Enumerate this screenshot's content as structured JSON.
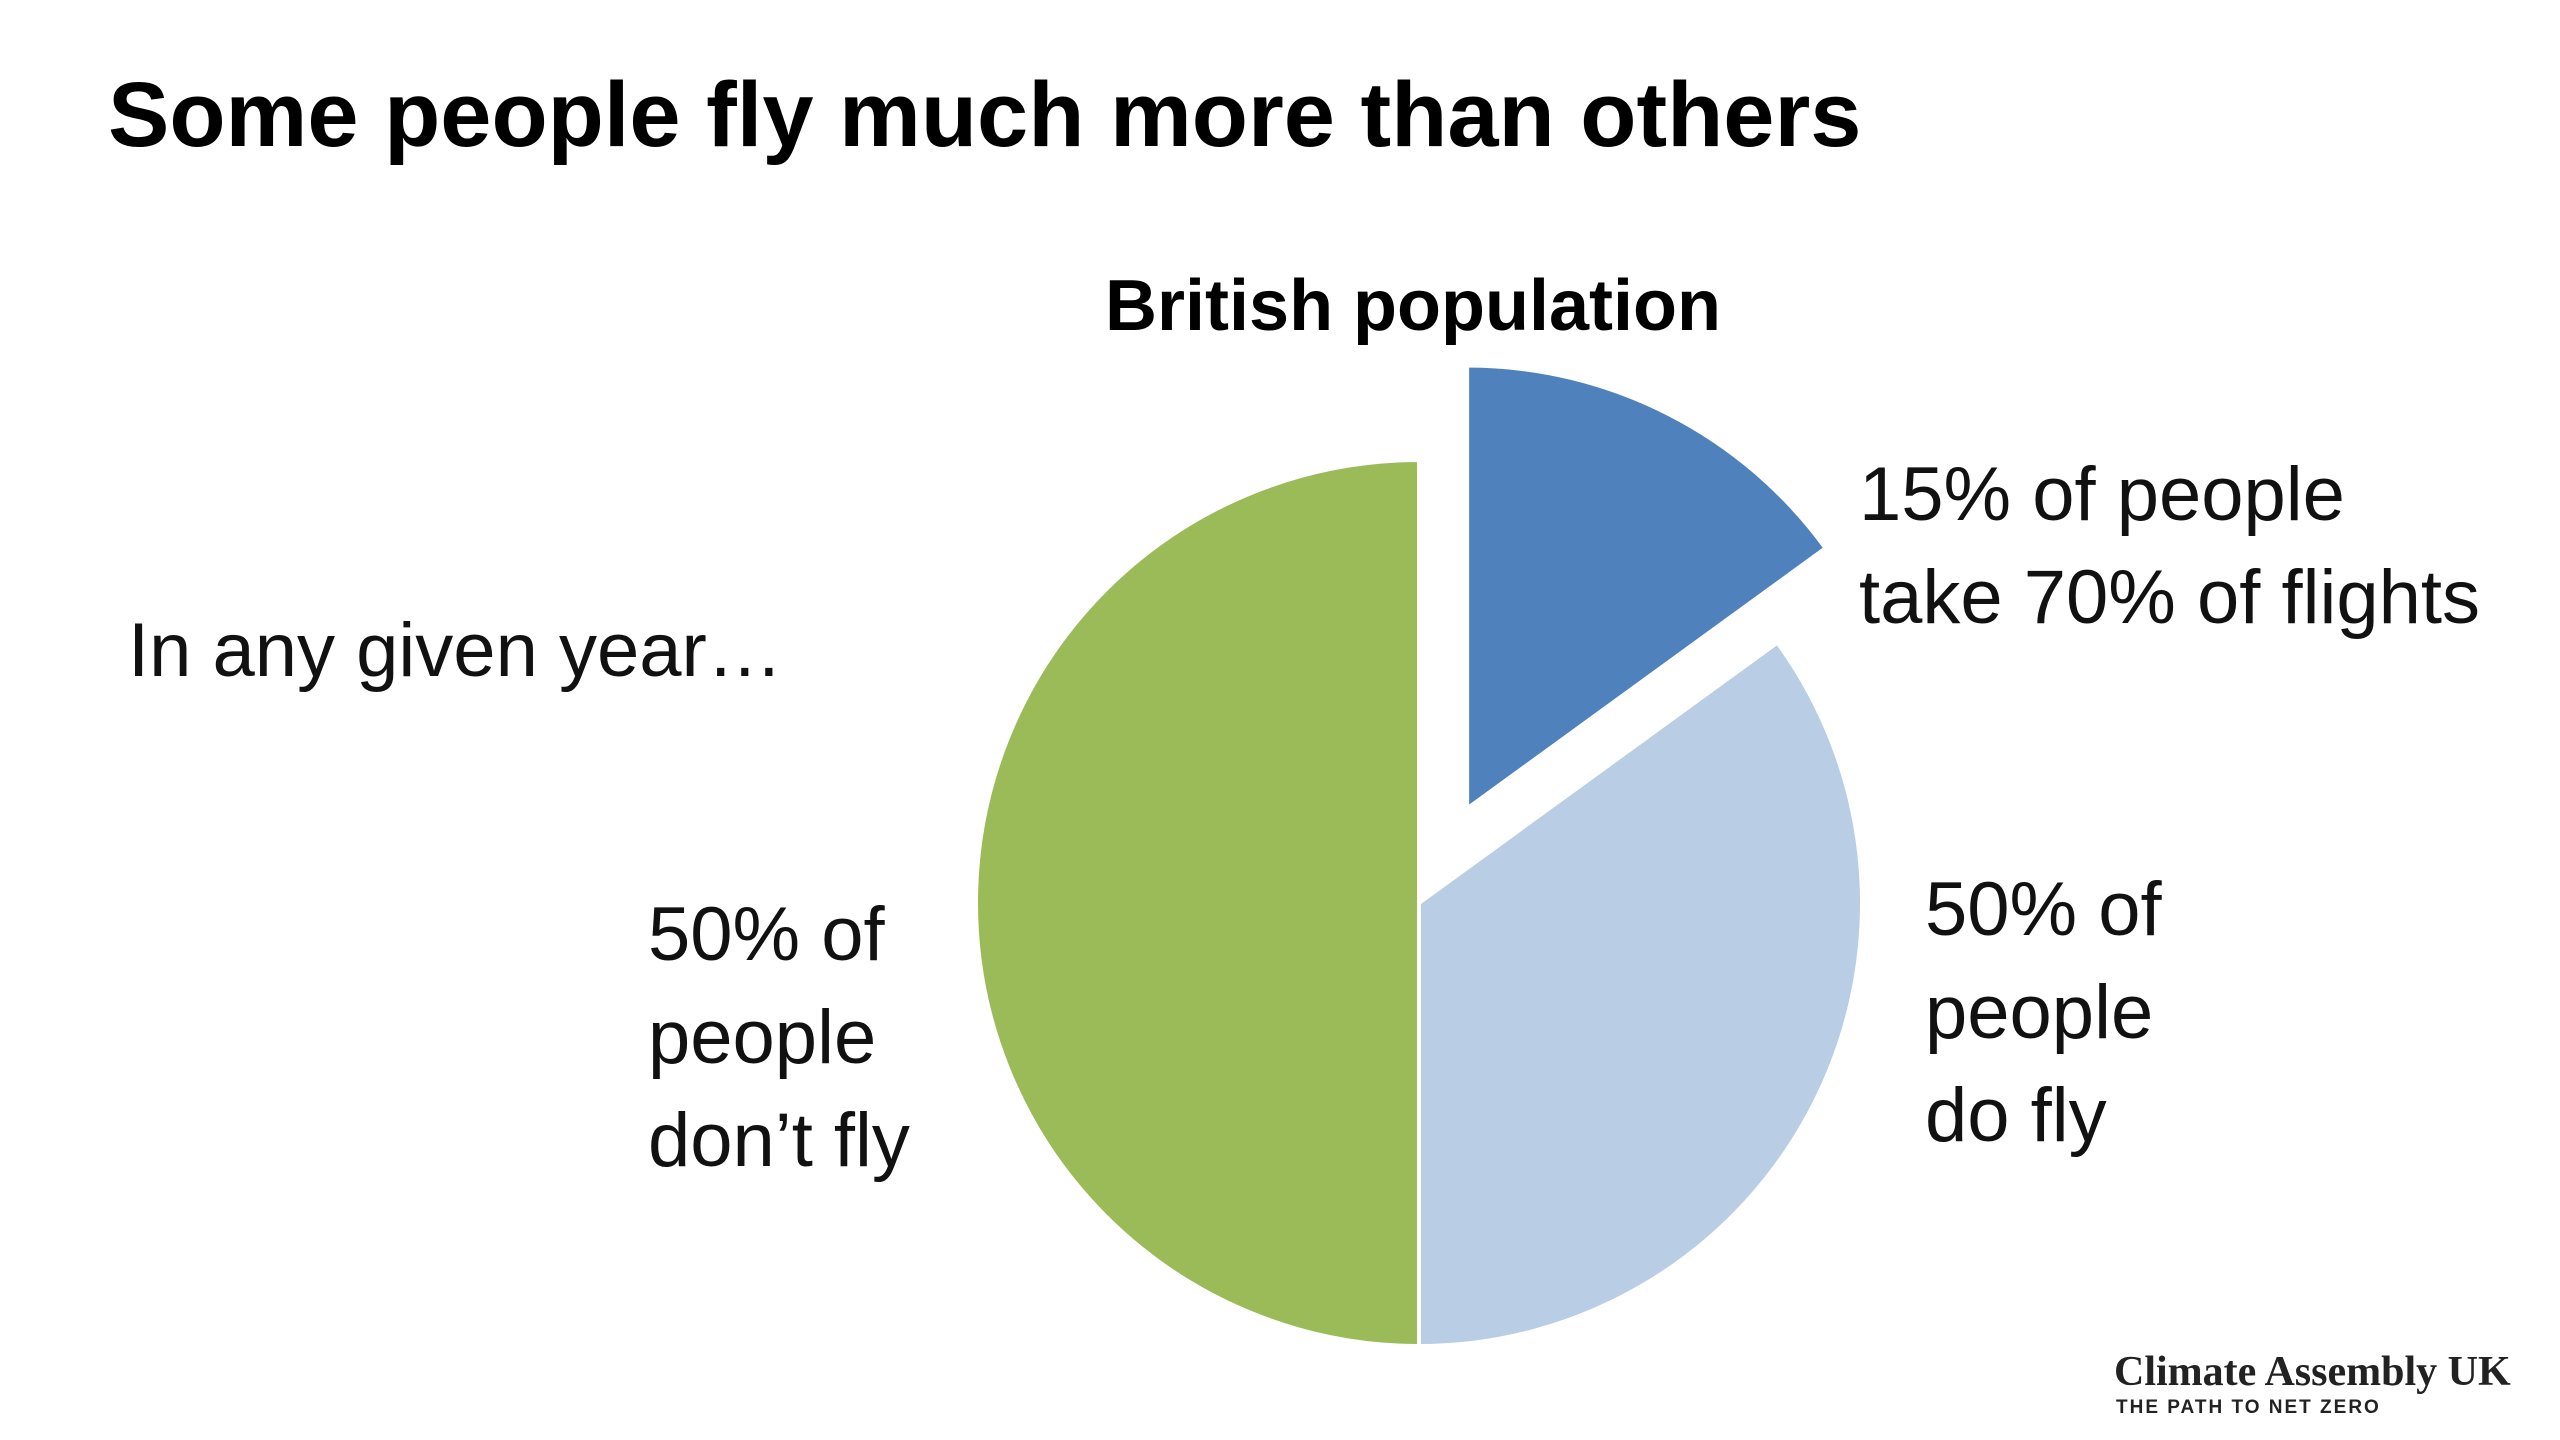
{
  "header": {
    "title": "Some people fly much more than others",
    "note": "In any given year…"
  },
  "chart_data": {
    "type": "pie",
    "title": "British population",
    "categories": [
      null,
      null,
      null
    ],
    "values": [
      15,
      35,
      50
    ],
    "colors": [
      "#4f81bd",
      "#b9cde5",
      "#9bbb59"
    ],
    "explode": [
      true,
      false,
      false
    ],
    "annotations": [
      [
        "15% of people",
        "take 70% of flights"
      ],
      [
        "50% of",
        "people",
        "do fly"
      ],
      [
        "50% of",
        "people",
        "don’t fly"
      ]
    ]
  },
  "footer": {
    "logo": "Climate Assembly UK",
    "tagline": "THE PATH TO NET ZERO"
  }
}
